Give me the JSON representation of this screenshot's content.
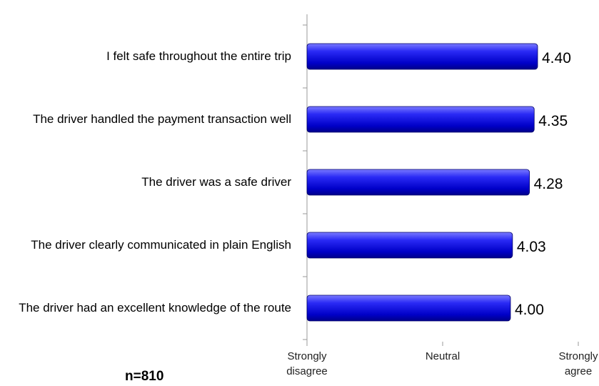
{
  "chart_data": {
    "type": "barh",
    "categories": [
      "I felt safe throughout the entire trip",
      "The driver handled the payment transaction well",
      "The driver was a safe driver",
      "The driver clearly communicated in plain English",
      "The driver had an excellent knowledge of the route"
    ],
    "values": [
      4.4,
      4.35,
      4.28,
      4.03,
      4.0
    ],
    "value_labels": [
      "4.40",
      "4.35",
      "4.28",
      "4.03",
      "4.00"
    ],
    "color": "#1010e0",
    "xlim": [
      1,
      5
    ],
    "xticks": [
      {
        "value": 1,
        "label": "Strongly disagree"
      },
      {
        "value": 3,
        "label": "Neutral"
      },
      {
        "value": 5,
        "label": "Strongly agree"
      }
    ],
    "annotation": "n=810"
  }
}
